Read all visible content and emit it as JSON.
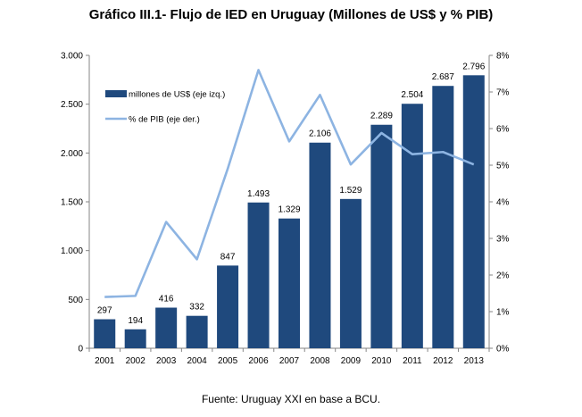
{
  "chart_data": {
    "type": "bar",
    "title": "Gráfico III.1- Flujo de IED en Uruguay (Millones de US$ y % PIB)",
    "categories": [
      "2001",
      "2002",
      "2003",
      "2004",
      "2005",
      "2006",
      "2007",
      "2008",
      "2009",
      "2010",
      "2011",
      "2012",
      "2013"
    ],
    "series": [
      {
        "name": "millones de US$ (eje izq.)",
        "type": "bar",
        "axis": "left",
        "color": "#1F497D",
        "values": [
          297,
          194,
          416,
          332,
          847,
          1493,
          1329,
          2106,
          1529,
          2289,
          2504,
          2687,
          2796
        ],
        "labels": [
          "297",
          "194",
          "416",
          "332",
          "847",
          "1.493",
          "1.329",
          "2.106",
          "1.529",
          "2.289",
          "2.504",
          "2.687",
          "2.796"
        ]
      },
      {
        "name": "% de PIB (eje der.)",
        "type": "line",
        "axis": "right",
        "color": "#8DB4E2",
        "values": [
          1.4,
          1.43,
          3.45,
          2.43,
          4.9,
          7.6,
          5.65,
          6.92,
          5.02,
          5.88,
          5.3,
          5.36,
          5.02
        ]
      }
    ],
    "y_left": {
      "ylim": [
        0,
        3000
      ],
      "ticks": [
        "0",
        "500",
        "1.000",
        "1.500",
        "2.000",
        "2.500",
        "3.000"
      ],
      "tick_values": [
        0,
        500,
        1000,
        1500,
        2000,
        2500,
        3000
      ]
    },
    "y_right": {
      "ylim": [
        0,
        8
      ],
      "ticks": [
        "0%",
        "1%",
        "2%",
        "3%",
        "4%",
        "5%",
        "6%",
        "7%",
        "8%"
      ],
      "tick_values": [
        0,
        1,
        2,
        3,
        4,
        5,
        6,
        7,
        8
      ]
    },
    "grid": false,
    "legend_position": "top-left",
    "source": "Fuente: Uruguay XXI en base a BCU."
  }
}
